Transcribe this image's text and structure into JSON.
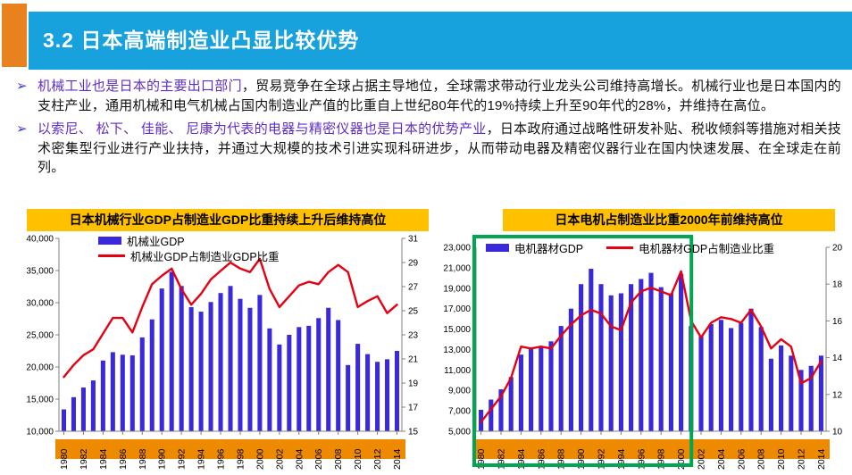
{
  "slide": {
    "title": "3.2 日本高端制造业凸显比较优势"
  },
  "ui": {
    "bullet_char": "➢"
  },
  "bullets": [
    {
      "highlight": "机械工业也是日本的主要出口部门",
      "rest": "，贸易竞争在全球占据主导地位，全球需求带动行业龙头公司维持高增长。机械行业也是日本国内的支柱产业，通用机械和电气机械占国内制造业产值的比重自上世纪80年代的19%持续上升至90年代的28%，并维持在高位。"
    },
    {
      "highlight": "以索尼、 松下、 佳能、 尼康为代表的电器与精密仪器也是日本的优势产业",
      "rest": "，日本政府通过战略性研发补贴、税收倾斜等措施对相关技术密集型行业进行产业扶持，并通过大规模的技术引进实现科研进步，从而带动电器及精密仪器行业在国内快速发展、在全球走在前列。"
    }
  ],
  "colors": {
    "banner": "#17A2DE",
    "accent_orange": "#E8821E",
    "title_band": "#FFC000",
    "axis_band": "#EE8A00",
    "bar": "#3A28DB",
    "line": "#E60012",
    "highlight_box": "#00A651",
    "bullet_highlight": "#5F2DC8",
    "bullet_arrow": "#3A3AD6"
  },
  "chart_data": [
    {
      "type": "combo_bar_line",
      "title": "日本机械行业GDP占制造业GDP比重持续上升后维持高位",
      "grid": false,
      "legend_position": "top-left-stacked",
      "x_tick_interval": 2,
      "x": [
        1980,
        1981,
        1982,
        1983,
        1984,
        1985,
        1986,
        1987,
        1988,
        1989,
        1990,
        1991,
        1992,
        1993,
        1994,
        1995,
        1996,
        1997,
        1998,
        1999,
        2000,
        2001,
        2002,
        2003,
        2004,
        2005,
        2006,
        2007,
        2008,
        2009,
        2010,
        2011,
        2012,
        2013,
        2014
      ],
      "left_axis": {
        "min": 10000,
        "max": 40000,
        "step": 5000,
        "format": "thousands"
      },
      "right_axis": {
        "min": 15,
        "max": 31,
        "step": 2,
        "format": "plain"
      },
      "series": [
        {
          "name": "机械业GDP",
          "type": "bar",
          "axis": "left",
          "values": [
            13400,
            15300,
            16800,
            17900,
            21000,
            22300,
            21900,
            21800,
            24600,
            27400,
            32200,
            34800,
            32600,
            29300,
            28600,
            30100,
            31500,
            32600,
            30600,
            29200,
            31200,
            26000,
            23500,
            25000,
            26200,
            26400,
            27600,
            29200,
            27300,
            20300,
            23600,
            22000,
            20800,
            21200,
            22500
          ]
        },
        {
          "name": "机械业GDP占制造业GDP比重",
          "type": "line",
          "axis": "right",
          "values": [
            19.5,
            20.5,
            21.3,
            21.8,
            23.1,
            24.4,
            24.4,
            23.2,
            25.3,
            27.2,
            27.9,
            28.5,
            26.8,
            25.5,
            26.4,
            27.6,
            28.3,
            29.0,
            28.5,
            28.2,
            29.3,
            26.8,
            25.3,
            26.2,
            27.1,
            27.4,
            27.2,
            28.2,
            28.8,
            28.2,
            25.3,
            25.8,
            26.2,
            24.8,
            25.5
          ]
        }
      ]
    },
    {
      "type": "combo_bar_line",
      "title": "日本电机占制造业比重2000年前维持高位",
      "grid": false,
      "legend_position": "top-row",
      "x_tick_interval": 2,
      "highlight_box": {
        "from": 1980,
        "to": 2000
      },
      "x": [
        1980,
        1981,
        1982,
        1983,
        1984,
        1985,
        1986,
        1987,
        1988,
        1989,
        1990,
        1991,
        1992,
        1993,
        1994,
        1995,
        1996,
        1997,
        1998,
        1999,
        2000,
        2001,
        2002,
        2003,
        2004,
        2005,
        2006,
        2007,
        2008,
        2009,
        2010,
        2011,
        2012,
        2013,
        2014
      ],
      "left_axis": {
        "min": 5000,
        "max": 23000,
        "step": 2000,
        "format": "thousands"
      },
      "right_axis": {
        "min": 10,
        "max": 20,
        "step": 2,
        "format": "plain"
      },
      "series": [
        {
          "name": "电机器材GDP",
          "type": "bar",
          "axis": "left",
          "values": [
            7100,
            8100,
            9100,
            10300,
            12500,
            13100,
            13300,
            13800,
            15300,
            17000,
            19400,
            20900,
            19400,
            18300,
            18500,
            19400,
            19900,
            20500,
            19100,
            18500,
            20400,
            15300,
            14300,
            15500,
            15900,
            15100,
            15600,
            17000,
            15200,
            12100,
            13400,
            12400,
            11000,
            11400,
            12400
          ]
        },
        {
          "name": "电机器材GDP占制造业比重",
          "type": "line",
          "axis": "right",
          "values": [
            10.5,
            11.2,
            11.9,
            12.9,
            14.6,
            14.5,
            14.6,
            14.5,
            15.2,
            15.8,
            16.3,
            16.6,
            16.4,
            15.7,
            15.5,
            17.0,
            17.6,
            17.8,
            17.6,
            17.4,
            18.7,
            16.0,
            15.1,
            15.9,
            16.2,
            16.1,
            15.9,
            16.6,
            15.7,
            14.5,
            15.0,
            14.6,
            12.6,
            12.9,
            13.8
          ]
        }
      ]
    }
  ]
}
